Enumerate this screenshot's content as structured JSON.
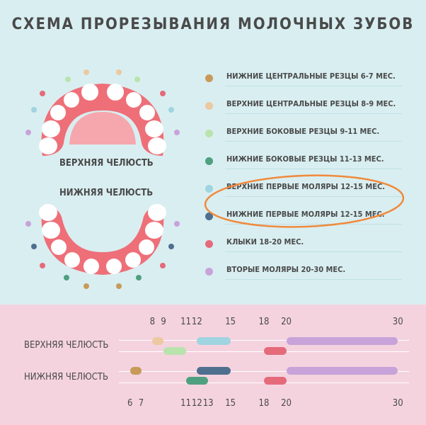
{
  "title": "СХЕМА ПРОРЕЗЫВАНИЯ МОЛОЧНЫХ ЗУБОВ",
  "jaw_labels": {
    "upper": "ВЕРХНЯЯ ЧЕЛЮСТЬ",
    "lower": "НИЖНЯЯ ЧЕЛЮСТЬ"
  },
  "legend": [
    {
      "label": "НИЖНИЕ ЦЕНТРАЛЬНЫЕ РЕЗЦЫ 6-7 МЕС.",
      "color": "#c89a5a"
    },
    {
      "label": "ВЕРХНИЕ ЦЕНТРАЛЬНЫЕ РЕЗЦЫ 8-9 МЕС.",
      "color": "#ecc9a0"
    },
    {
      "label": "ВЕРХНИЕ БОКОВЫЕ РЕЗЦЫ 9-11 МЕС.",
      "color": "#b9e3ad"
    },
    {
      "label": "НИЖНИЕ БОКОВЫЕ РЕЗЦЫ 11-13 МЕС.",
      "color": "#4fa07f"
    },
    {
      "label": "ВЕРХНИЕ ПЕРВЫЕ МОЛЯРЫ 12-15 МЕС.",
      "color": "#9fd4e0"
    },
    {
      "label": "НИЖНИЕ ПЕРВЫЕ МОЛЯРЫ 12-15 МЕС.",
      "color": "#4f6f8f"
    },
    {
      "label": "КЛЫКИ 18-20 МЕС.",
      "color": "#e56a7a"
    },
    {
      "label": "ВТОРЫЕ МОЛЯРЫ 20-30 МЕС.",
      "color": "#c7a3d9"
    }
  ],
  "highlight_color": "#f08a3c",
  "timeline": {
    "axis": {
      "min": 5,
      "max": 31
    },
    "upper": {
      "label": "ВЕРХНЯЯ ЧЕЛЮСТЬ",
      "ticks": [
        8,
        9,
        11,
        12,
        15,
        18,
        20,
        30
      ],
      "bars": [
        {
          "name": "ВЕРХНИЕ ЦЕНТРАЛЬНЫЕ РЕЗЦЫ",
          "start": 8,
          "end": 9,
          "row": 0,
          "color": "#ecc9a0"
        },
        {
          "name": "ВЕРХНИЕ БОКОВЫЕ РЕЗЦЫ",
          "start": 9,
          "end": 11,
          "row": 1,
          "color": "#b9e3ad"
        },
        {
          "name": "ВЕРХНИЕ ПЕРВЫЕ МОЛЯРЫ",
          "start": 12,
          "end": 15,
          "row": 0,
          "color": "#9fd4e0"
        },
        {
          "name": "КЛЫКИ",
          "start": 18,
          "end": 20,
          "row": 1,
          "color": "#e56a7a"
        },
        {
          "name": "ВТОРЫЕ МОЛЯРЫ",
          "start": 20,
          "end": 30,
          "row": 0,
          "color": "#c7a3d9"
        }
      ]
    },
    "lower": {
      "label": "НИЖНЯЯ ЧЕЛЮСТЬ",
      "ticks": [
        6,
        7,
        11,
        12,
        13,
        15,
        18,
        20,
        30
      ],
      "bars": [
        {
          "name": "НИЖНИЕ ЦЕНТРАЛЬНЫЕ РЕЗЦЫ",
          "start": 6,
          "end": 7,
          "row": 0,
          "color": "#c89a5a"
        },
        {
          "name": "НИЖНИЕ БОКОВЫЕ РЕЗЦЫ",
          "start": 11,
          "end": 13,
          "row": 1,
          "color": "#4fa07f"
        },
        {
          "name": "НИЖНИЕ ПЕРВЫЕ МОЛЯРЫ",
          "start": 12,
          "end": 15,
          "row": 0,
          "color": "#4f6f8f"
        },
        {
          "name": "КЛЫКИ",
          "start": 18,
          "end": 20,
          "row": 1,
          "color": "#e56a7a"
        },
        {
          "name": "ВТОРЫЕ МОЛЯРЫ",
          "start": 20,
          "end": 30,
          "row": 0,
          "color": "#c7a3d9"
        }
      ]
    }
  }
}
